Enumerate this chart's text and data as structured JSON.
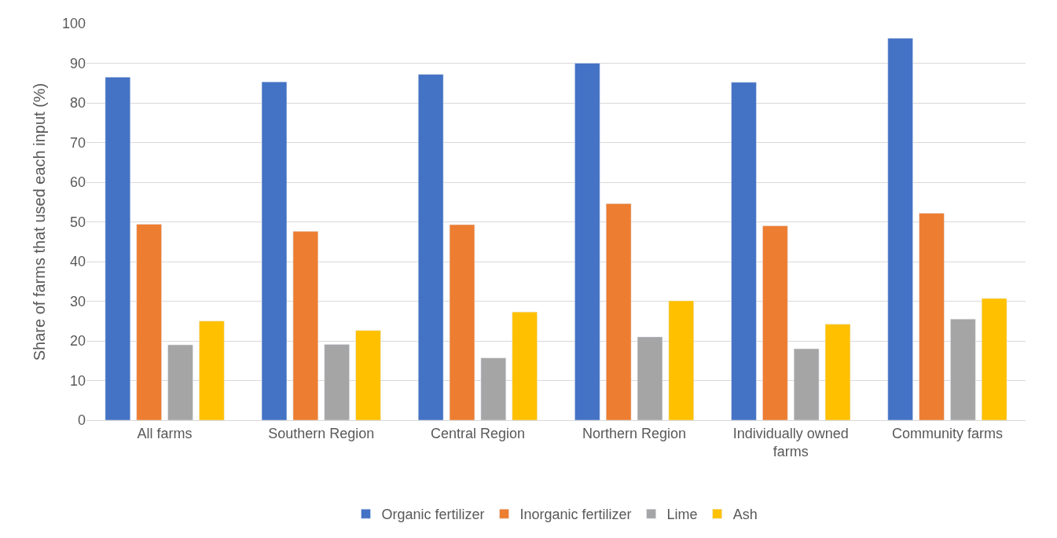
{
  "chart_data": {
    "type": "bar",
    "ylabel": "Share of farms that used each input (%)",
    "categories": [
      "All farms",
      "Southern Region",
      "Central Region",
      "Northern Region",
      "Individually owned farms",
      "Community farms"
    ],
    "series": [
      {
        "name": "Organic fertilizer",
        "color": "#4472c4",
        "values": [
          86.5,
          85.3,
          87.2,
          90.0,
          85.2,
          96.3
        ]
      },
      {
        "name": "Inorganic fertilizer",
        "color": "#ed7d31",
        "values": [
          49.4,
          47.6,
          49.3,
          54.6,
          49.0,
          52.2
        ]
      },
      {
        "name": "Lime",
        "color": "#a5a5a5",
        "values": [
          19.0,
          19.1,
          15.7,
          21.0,
          18.0,
          25.5
        ]
      },
      {
        "name": "Ash",
        "color": "#ffc000",
        "values": [
          25.0,
          22.6,
          27.3,
          30.1,
          24.2,
          30.7
        ]
      }
    ],
    "ylim": [
      0,
      100
    ],
    "yticks": [
      0,
      10,
      20,
      30,
      40,
      50,
      60,
      70,
      80,
      90,
      100
    ],
    "grid": "y",
    "legend": "bottom"
  }
}
